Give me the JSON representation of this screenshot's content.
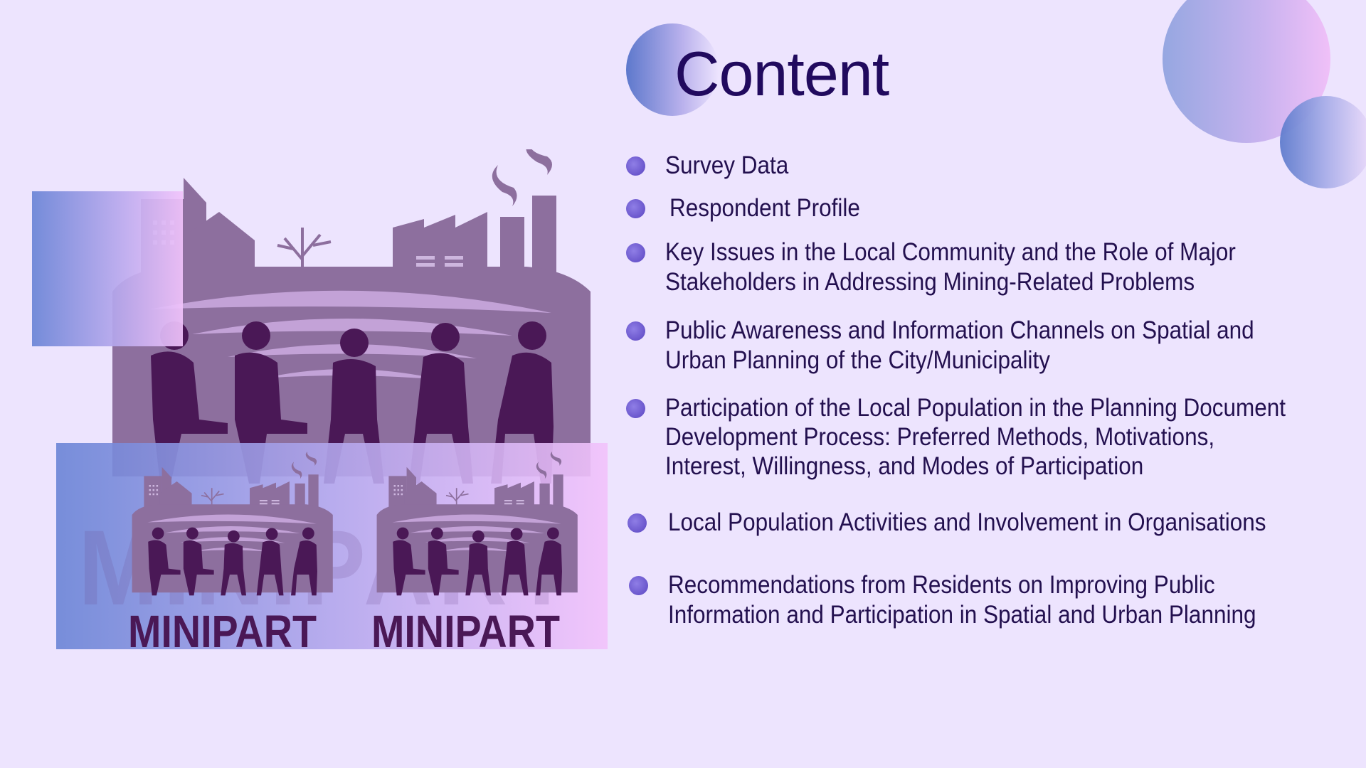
{
  "slide": {
    "title": "Content",
    "items": [
      {
        "lines": [
          "Survey Data"
        ]
      },
      {
        "lines": [
          "Respondent Profile"
        ]
      },
      {
        "lines": [
          "Key Issues in the Local Community and the Role of Major",
          "Stakeholders in Addressing Mining-Related Problems"
        ]
      },
      {
        "lines": [
          "Public Awareness and Information Channels on Spatial and",
          "Urban Planning of the City/Municipality"
        ]
      },
      {
        "lines": [
          "Participation of the Local Population in the Planning Document",
          "Development Process: Preferred Methods, Motivations,",
          "Interest, Willingness, and Modes of Participation"
        ]
      },
      {
        "lines": [
          "Local Population Activities and Involvement in Organisations"
        ]
      },
      {
        "lines": [
          "Recommendations from Residents on Improving Public",
          "Information and Participation in Spatial and Urban Planning"
        ]
      }
    ]
  },
  "logo": {
    "text_left": "MINIPART",
    "text_right": "MINIPART",
    "watermark": "MINIPART"
  },
  "colors": {
    "background": "#ede4fe",
    "title": "#210a5e",
    "text": "#23104f",
    "bullet": "#6a56cc",
    "silhouette": "#8d6f9e",
    "people": "#4a1856"
  }
}
